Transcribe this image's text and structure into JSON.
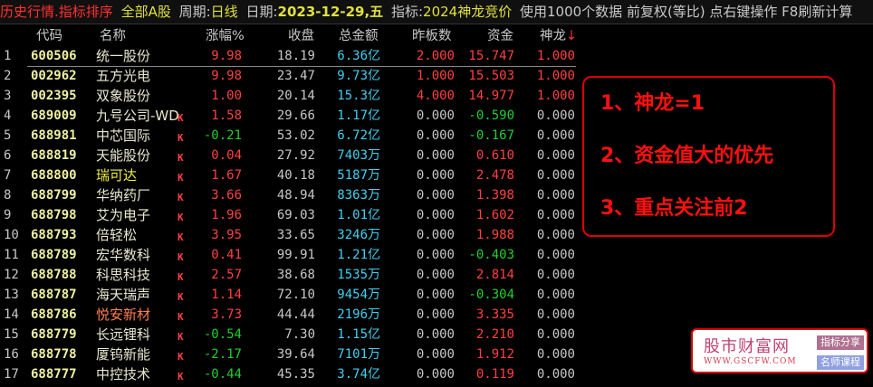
{
  "topbar": {
    "title": "历史行情.指标排序",
    "market": "全部A股",
    "period_label": "周期:",
    "period": "日线",
    "date_label": "日期:",
    "date": "2023-12-29,五",
    "indicator_label": "指标:",
    "indicator": "2024神龙竞价",
    "info": "使用1000个数据 前复权(等比) 点右键操作 F8刷新计算"
  },
  "columns": [
    "代码",
    "名称",
    "涨幅%",
    "收盘",
    "总金额",
    "昨板数",
    "资金",
    "神龙"
  ],
  "sort_indicator": "↓",
  "rows": [
    {
      "idx": "1",
      "code": "600506",
      "name": "统一股份",
      "k": "",
      "chg": "9.98",
      "close": "18.19",
      "amt": "6.36亿",
      "prev": "2.000",
      "fund": "15.747",
      "sl": "1.000"
    },
    {
      "idx": "2",
      "code": "002962",
      "name": "五方光电",
      "k": "",
      "chg": "9.98",
      "close": "23.47",
      "amt": "9.73亿",
      "prev": "1.000",
      "fund": "15.503",
      "sl": "1.000"
    },
    {
      "idx": "3",
      "code": "002395",
      "name": "双象股份",
      "k": "",
      "chg": "1.00",
      "close": "20.14",
      "amt": "15.3亿",
      "prev": "4.000",
      "fund": "14.977",
      "sl": "1.000"
    },
    {
      "idx": "4",
      "code": "689009",
      "name": "九号公司-WD",
      "k": "K",
      "chg": "1.58",
      "close": "29.66",
      "amt": "1.17亿",
      "prev": "0.000",
      "fund": "-0.590",
      "sl": "0.000"
    },
    {
      "idx": "5",
      "code": "688981",
      "name": "中芯国际",
      "k": "K",
      "chg": "-0.21",
      "close": "53.02",
      "amt": "6.72亿",
      "prev": "0.000",
      "fund": "-0.167",
      "sl": "0.000"
    },
    {
      "idx": "6",
      "code": "688819",
      "name": "天能股份",
      "k": "K",
      "chg": "0.04",
      "close": "27.92",
      "amt": "7403万",
      "prev": "0.000",
      "fund": "0.610",
      "sl": "0.000"
    },
    {
      "idx": "7",
      "code": "688800",
      "name": "瑞可达",
      "k": "K",
      "chg": "1.67",
      "close": "40.18",
      "amt": "5187万",
      "prev": "0.000",
      "fund": "2.478",
      "sl": "0.000"
    },
    {
      "idx": "8",
      "code": "688799",
      "name": "华纳药厂",
      "k": "K",
      "chg": "3.66",
      "close": "48.94",
      "amt": "8363万",
      "prev": "0.000",
      "fund": "1.398",
      "sl": "0.000"
    },
    {
      "idx": "9",
      "code": "688798",
      "name": "艾为电子",
      "k": "K",
      "chg": "1.96",
      "close": "69.03",
      "amt": "1.01亿",
      "prev": "0.000",
      "fund": "1.602",
      "sl": "0.000"
    },
    {
      "idx": "10",
      "code": "688793",
      "name": "倍轻松",
      "k": "K",
      "chg": "3.95",
      "close": "33.65",
      "amt": "3246万",
      "prev": "0.000",
      "fund": "1.988",
      "sl": "0.000"
    },
    {
      "idx": "11",
      "code": "688789",
      "name": "宏华数科",
      "k": "K",
      "chg": "0.41",
      "close": "99.91",
      "amt": "1.21亿",
      "prev": "0.000",
      "fund": "-0.403",
      "sl": "0.000"
    },
    {
      "idx": "12",
      "code": "688788",
      "name": "科思科技",
      "k": "K",
      "chg": "2.57",
      "close": "38.68",
      "amt": "1535万",
      "prev": "0.000",
      "fund": "2.814",
      "sl": "0.000"
    },
    {
      "idx": "13",
      "code": "688787",
      "name": "海天瑞声",
      "k": "K",
      "chg": "1.14",
      "close": "72.10",
      "amt": "9454万",
      "prev": "0.000",
      "fund": "-0.304",
      "sl": "0.000"
    },
    {
      "idx": "14",
      "code": "688786",
      "name": "悦安新材",
      "k": "K",
      "chg": "3.73",
      "close": "44.44",
      "amt": "2196万",
      "prev": "0.000",
      "fund": "3.335",
      "sl": "0.000"
    },
    {
      "idx": "15",
      "code": "688779",
      "name": "长远锂科",
      "k": "K",
      "chg": "-0.54",
      "close": "7.30",
      "amt": "1.15亿",
      "prev": "0.000",
      "fund": "2.210",
      "sl": "0.000"
    },
    {
      "idx": "16",
      "code": "688778",
      "name": "厦钨新能",
      "k": "K",
      "chg": "-2.17",
      "close": "39.64",
      "amt": "7101万",
      "prev": "0.000",
      "fund": "1.912",
      "sl": "0.000"
    },
    {
      "idx": "17",
      "code": "688777",
      "name": "中控技术",
      "k": "K",
      "chg": "-0.44",
      "close": "45.35",
      "amt": "3.74亿",
      "prev": "0.000",
      "fund": "0.119",
      "sl": "0.000"
    }
  ],
  "name_colors": {
    "瑞可达": "#f0f040",
    "悦安新材": "#ff8050"
  },
  "note": [
    "1、神龙=1",
    "2、资金值大的优先",
    "3、重点关注前2"
  ],
  "logo": {
    "title": "股市财富网",
    "url": "WWW.GSCFW.COM",
    "badge1": "指标分享",
    "badge2": "名师课程"
  }
}
